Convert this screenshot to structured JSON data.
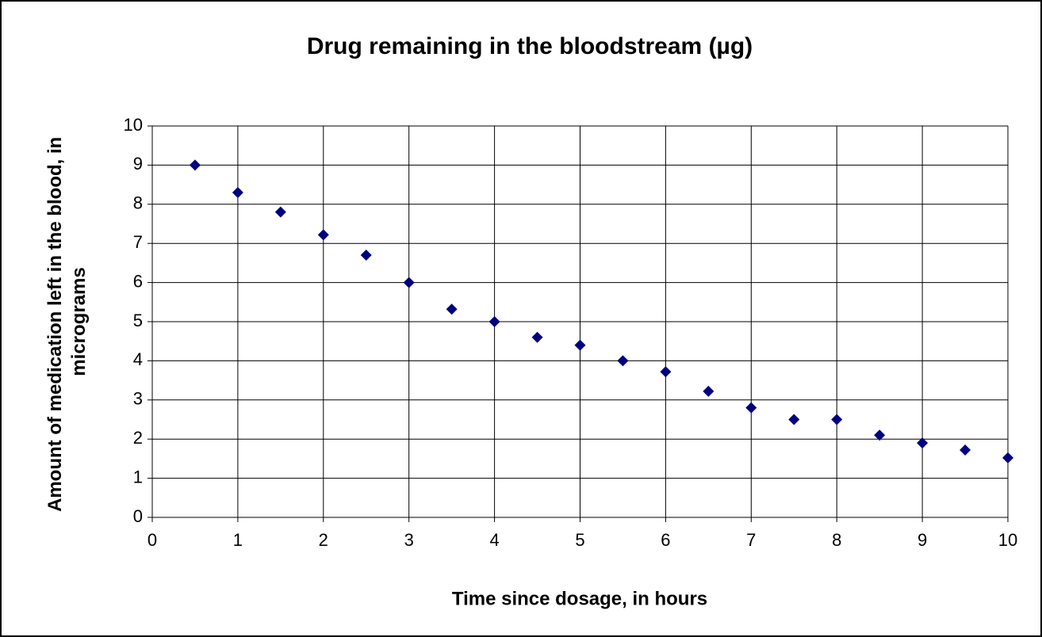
{
  "chart_data": {
    "type": "scatter",
    "title": "Drug remaining in the bloodstream (µg)",
    "x_label": "Time since dosage, in hours",
    "y_label": "Amount of medication left in the blood, in micrograms",
    "x": [
      0.5,
      1,
      1.5,
      2,
      2.5,
      3,
      3.5,
      4,
      4.5,
      5,
      5.5,
      6,
      6.5,
      7,
      7.5,
      8,
      8.5,
      9,
      9.5,
      10
    ],
    "values": [
      9,
      8.3,
      7.8,
      7.22,
      6.7,
      6.0,
      5.32,
      5.0,
      4.6,
      4.4,
      4.0,
      3.72,
      3.22,
      2.8,
      2.5,
      2.5,
      2.1,
      1.9,
      1.72,
      1.52
    ],
    "color": "#000080",
    "xlim": [
      0,
      10
    ],
    "xticks": [
      0,
      1,
      2,
      3,
      4,
      5,
      6,
      7,
      8,
      9,
      10
    ],
    "ylim": [
      0,
      10
    ],
    "yticks": [
      0,
      1,
      2,
      3,
      4,
      5,
      6,
      7,
      8,
      9,
      10
    ],
    "grid": true
  }
}
